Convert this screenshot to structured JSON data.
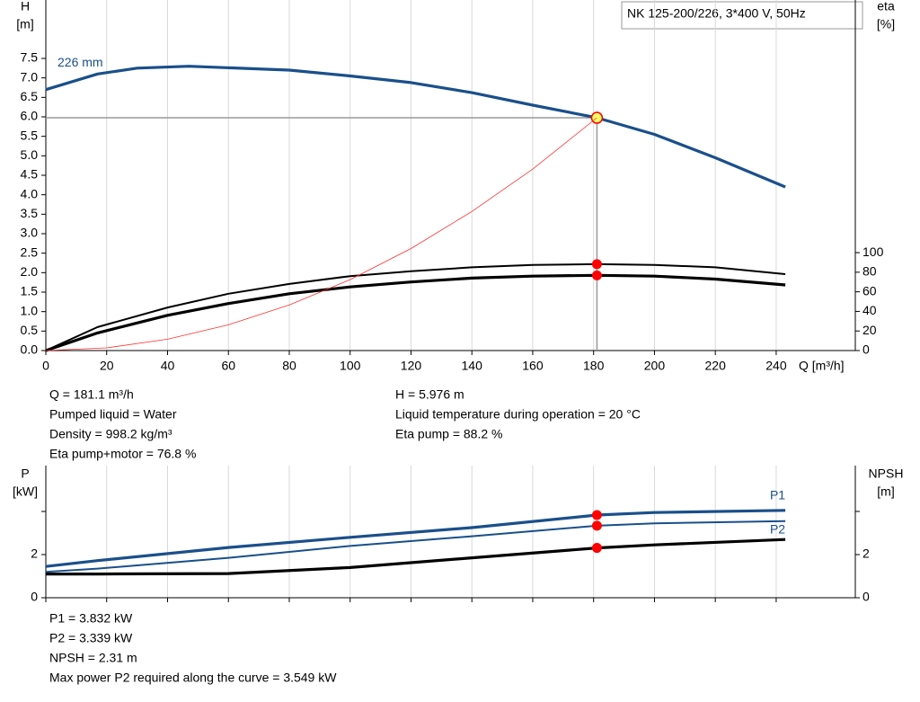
{
  "chart_data": [
    {
      "type": "line",
      "title": "NK 125-200/226, 3*400 V, 50Hz",
      "ylabel": [
        "H",
        "[m]"
      ],
      "y2label": [
        "eta",
        "[%]"
      ],
      "xlabel": "Q [m³/h]",
      "xlim": [
        0,
        266
      ],
      "ylim": [
        0,
        9
      ],
      "y2lim": [
        0,
        358
      ],
      "xticks": [
        0,
        20,
        40,
        60,
        80,
        100,
        120,
        140,
        160,
        180,
        200,
        220,
        240
      ],
      "yticks": [
        {
          "value": 0,
          "label": "0.0"
        },
        0.5,
        {
          "value": 1,
          "label": "1.0"
        },
        1.5,
        {
          "value": 2,
          "label": "2.0"
        },
        2.5,
        {
          "value": 3,
          "label": "3.0"
        },
        3.5,
        {
          "value": 4,
          "label": "4.0"
        },
        4.5,
        {
          "value": 5,
          "label": "5.0"
        },
        5.5,
        {
          "value": 6,
          "label": "6.0"
        },
        6.5,
        {
          "value": 7,
          "label": "7.0"
        },
        7.5
      ],
      "y2ticks": [
        0,
        20,
        40,
        60,
        80,
        100
      ],
      "grid": true,
      "operating_point": {
        "x": 181.1,
        "y": 5.976
      },
      "series": [
        {
          "name": "226 mm",
          "color": "#1a4f8b",
          "width": 3.2,
          "x": [
            0,
            17,
            30,
            47,
            80,
            100,
            120,
            140,
            160,
            181.1,
            200,
            220,
            243
          ],
          "values": [
            6.7,
            7.1,
            7.25,
            7.3,
            7.2,
            7.05,
            6.88,
            6.62,
            6.3,
            5.976,
            5.55,
            4.95,
            4.2
          ]
        },
        {
          "color": "#000000",
          "width": 2,
          "axis": "y2",
          "x": [
            0,
            17,
            40,
            60,
            80,
            100,
            120,
            140,
            160,
            181.1,
            200,
            220,
            243
          ],
          "values": [
            0,
            24,
            44,
            58,
            68,
            76,
            81,
            85,
            87.5,
            88.2,
            87.5,
            85,
            78
          ]
        },
        {
          "color": "#000000",
          "width": 3.2,
          "axis": "y2",
          "x": [
            0,
            17,
            40,
            60,
            80,
            100,
            120,
            140,
            160,
            181.1,
            200,
            220,
            243
          ],
          "values": [
            0,
            18,
            36,
            48,
            58,
            65,
            70,
            74,
            76,
            76.8,
            76,
            73,
            67
          ]
        },
        {
          "color": "#ff3030",
          "width": 0.8,
          "x": [
            0,
            20,
            40,
            60,
            80,
            100,
            120,
            140,
            160,
            181.1
          ],
          "values": [
            0,
            0.07,
            0.29,
            0.66,
            1.17,
            1.82,
            2.62,
            3.57,
            4.66,
            5.976
          ]
        }
      ]
    },
    {
      "type": "line",
      "ylabel": [
        "P",
        "[kW]"
      ],
      "y2label": [
        "NPSH",
        "[m]"
      ],
      "xlim": [
        0,
        266
      ],
      "ylim": [
        0,
        6.125
      ],
      "y2lim": [
        0,
        6.125
      ],
      "xgrid": [
        0,
        20,
        40,
        60,
        80,
        100,
        120,
        140,
        160,
        180,
        200,
        220,
        240
      ],
      "yticks": [
        0,
        2,
        {
          "value": 4,
          "label": null
        }
      ],
      "y2ticks": [
        0,
        2,
        {
          "value": 4,
          "label": null
        }
      ],
      "grid": true,
      "operating_point": {
        "x": 181.1
      },
      "series": [
        {
          "name": "P1",
          "color": "#1a4f8b",
          "width": 3.2,
          "x": [
            0,
            17,
            60,
            100,
            140,
            181.1,
            200,
            243
          ],
          "values": [
            1.45,
            1.72,
            2.33,
            2.8,
            3.25,
            3.832,
            3.95,
            4.05
          ]
        },
        {
          "name": "P2",
          "color": "#1a4f8b",
          "width": 2,
          "x": [
            0,
            17,
            60,
            100,
            140,
            181.1,
            200,
            243
          ],
          "values": [
            1.2,
            1.35,
            1.85,
            2.4,
            2.85,
            3.339,
            3.45,
            3.55
          ]
        },
        {
          "color": "#000000",
          "width": 3.2,
          "axis": "y2",
          "x": [
            0,
            17,
            60,
            100,
            140,
            181.1,
            200,
            243
          ],
          "values": [
            1.1,
            1.1,
            1.12,
            1.4,
            1.85,
            2.31,
            2.45,
            2.7
          ]
        }
      ]
    }
  ],
  "info_top_left": [
    "Q = 181.1 m³/h",
    "Pumped liquid = Water",
    "Density = 998.2 kg/m³",
    "Eta pump+motor = 76.8 %"
  ],
  "info_top_right": [
    "H = 5.976 m",
    "Liquid temperature during operation = 20 °C",
    "Eta pump = 88.2 %"
  ],
  "info_bottom": [
    "P1 = 3.832 kW",
    "P2 = 3.339 kW",
    "NPSH = 2.31 m",
    "Max power P2 required along the curve = 3.549 kW"
  ]
}
